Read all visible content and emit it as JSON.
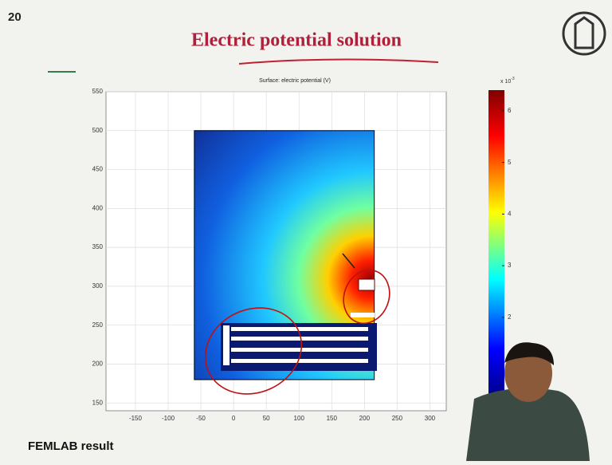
{
  "slide_number": "20",
  "title": "Electric potential solution",
  "footer": "FEMLAB result",
  "plot": {
    "title": "Surface: electric potential (V)",
    "xlim": [
      -195,
      325
    ],
    "ylim": [
      140,
      550
    ],
    "xticks": [
      -150,
      -100,
      -50,
      0,
      50,
      100,
      150,
      200,
      250,
      300
    ],
    "yticks": [
      150,
      200,
      250,
      300,
      350,
      400,
      450,
      500,
      550
    ],
    "domain": {
      "x": [
        -60,
        215
      ],
      "y": [
        180,
        500
      ]
    },
    "colorbar": {
      "label": "x 10",
      "exponent": "-3",
      "clim": [
        0.5,
        6.4
      ],
      "ticks": [
        2,
        3,
        4,
        5,
        6
      ]
    }
  }
}
